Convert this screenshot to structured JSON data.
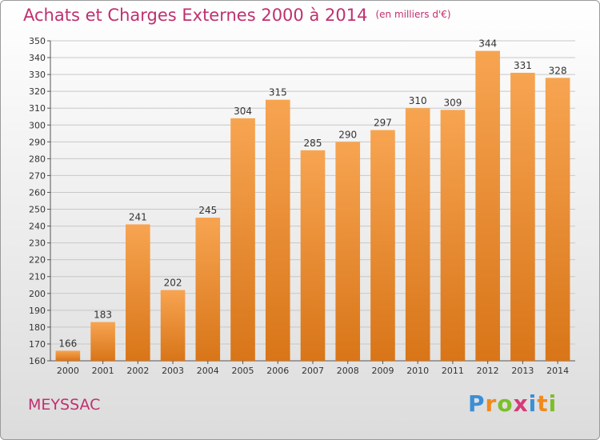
{
  "title": "Achats et Charges Externes 2000 à 2014",
  "unit_note": "(en milliers d'€)",
  "commune": "MEYSSAC",
  "logo": {
    "text": "Proxiti",
    "letters": [
      {
        "ch": "P",
        "color": "#3a8fd6"
      },
      {
        "ch": "r",
        "color": "#f08a1c"
      },
      {
        "ch": "o",
        "color": "#7cbf2a"
      },
      {
        "ch": "x",
        "color": "#d63a7a"
      },
      {
        "ch": "i",
        "color": "#3a8fd6"
      },
      {
        "ch": "t",
        "color": "#f08a1c"
      },
      {
        "ch": "i",
        "color": "#7cbf2a"
      }
    ]
  },
  "colors": {
    "bar_top": "#f7a451",
    "bar_bottom": "#d87518",
    "title": "#c0306f",
    "grid": "#c8c8c8"
  },
  "chart_data": {
    "type": "bar",
    "categories": [
      "2000",
      "2001",
      "2002",
      "2003",
      "2004",
      "2005",
      "2006",
      "2007",
      "2008",
      "2009",
      "2010",
      "2011",
      "2012",
      "2013",
      "2014"
    ],
    "values": [
      166,
      183,
      241,
      202,
      245,
      304,
      315,
      285,
      290,
      297,
      310,
      309,
      344,
      331,
      328
    ],
    "ylim": [
      160,
      350
    ],
    "ytick_step": 10,
    "grid": true
  }
}
